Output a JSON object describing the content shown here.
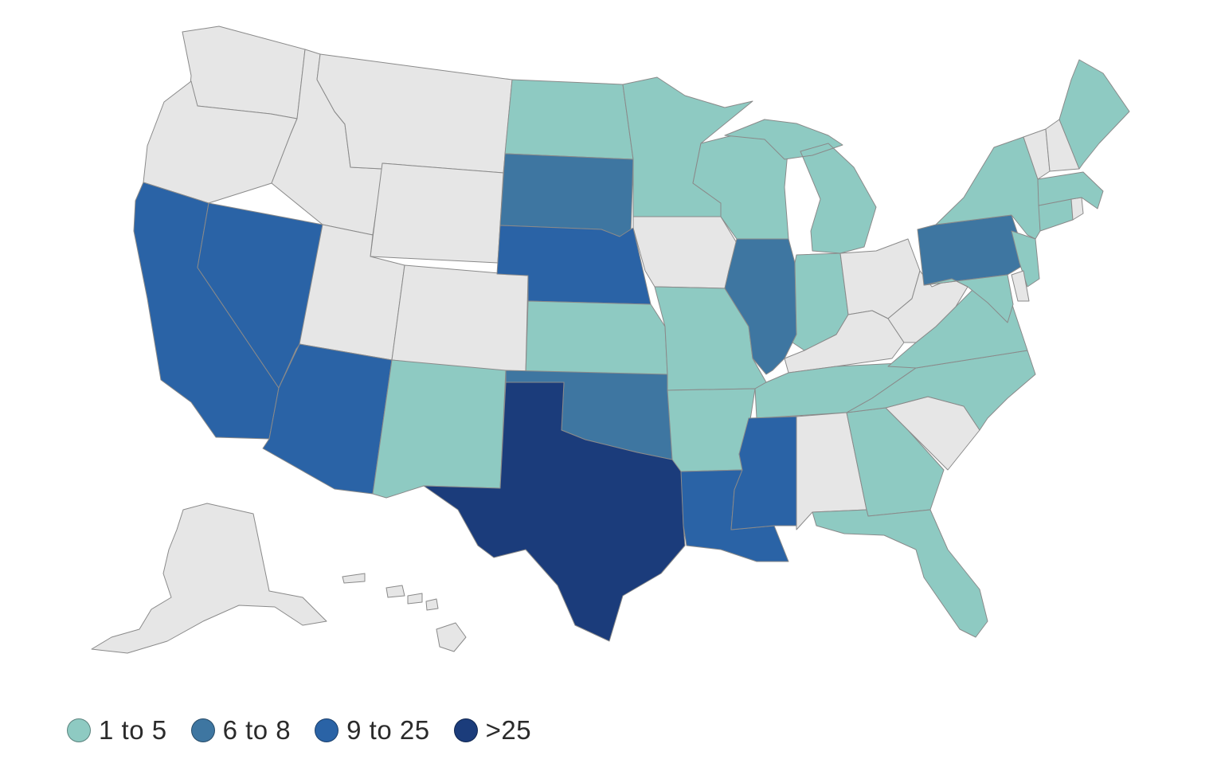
{
  "colors": {
    "no_data": "#e6e6e6",
    "bin_1_5": "#8ecac2",
    "bin_6_8": "#3e76a1",
    "bin_9_25": "#2a63a6",
    "bin_gt_25": "#1b3c7b"
  },
  "legend": [
    {
      "label": "1 to 5",
      "color_key": "bin_1_5"
    },
    {
      "label": "6 to 8",
      "color_key": "bin_6_8"
    },
    {
      "label": "9 to 25",
      "color_key": "bin_9_25"
    },
    {
      "label": ">25",
      "color_key": "bin_gt_25"
    }
  ],
  "states": [
    {
      "id": "WA",
      "bin": "no_data"
    },
    {
      "id": "OR",
      "bin": "no_data"
    },
    {
      "id": "CA",
      "bin": "bin_9_25"
    },
    {
      "id": "NV",
      "bin": "bin_9_25"
    },
    {
      "id": "ID",
      "bin": "no_data"
    },
    {
      "id": "MT",
      "bin": "no_data"
    },
    {
      "id": "WY",
      "bin": "no_data"
    },
    {
      "id": "UT",
      "bin": "no_data"
    },
    {
      "id": "AZ",
      "bin": "bin_9_25"
    },
    {
      "id": "CO",
      "bin": "no_data"
    },
    {
      "id": "NM",
      "bin": "bin_1_5"
    },
    {
      "id": "ND",
      "bin": "bin_1_5"
    },
    {
      "id": "SD",
      "bin": "bin_6_8"
    },
    {
      "id": "NE",
      "bin": "bin_9_25"
    },
    {
      "id": "KS",
      "bin": "bin_1_5"
    },
    {
      "id": "OK",
      "bin": "bin_6_8"
    },
    {
      "id": "TX",
      "bin": "bin_gt_25"
    },
    {
      "id": "MN",
      "bin": "bin_1_5"
    },
    {
      "id": "IA",
      "bin": "no_data"
    },
    {
      "id": "MO",
      "bin": "bin_1_5"
    },
    {
      "id": "AR",
      "bin": "bin_1_5"
    },
    {
      "id": "LA",
      "bin": "bin_9_25"
    },
    {
      "id": "WI",
      "bin": "bin_1_5"
    },
    {
      "id": "IL",
      "bin": "bin_6_8"
    },
    {
      "id": "MI",
      "bin": "bin_1_5"
    },
    {
      "id": "IN",
      "bin": "bin_1_5"
    },
    {
      "id": "OH",
      "bin": "no_data"
    },
    {
      "id": "KY",
      "bin": "no_data"
    },
    {
      "id": "TN",
      "bin": "bin_1_5"
    },
    {
      "id": "MS",
      "bin": "bin_9_25"
    },
    {
      "id": "AL",
      "bin": "no_data"
    },
    {
      "id": "GA",
      "bin": "bin_1_5"
    },
    {
      "id": "FL",
      "bin": "bin_1_5"
    },
    {
      "id": "SC",
      "bin": "no_data"
    },
    {
      "id": "NC",
      "bin": "bin_1_5"
    },
    {
      "id": "VA",
      "bin": "bin_1_5"
    },
    {
      "id": "WV",
      "bin": "no_data"
    },
    {
      "id": "PA",
      "bin": "bin_6_8"
    },
    {
      "id": "NY",
      "bin": "bin_1_5"
    },
    {
      "id": "NJ",
      "bin": "bin_1_5"
    },
    {
      "id": "DE",
      "bin": "no_data"
    },
    {
      "id": "MD",
      "bin": "bin_1_5"
    },
    {
      "id": "CT",
      "bin": "bin_1_5"
    },
    {
      "id": "RI",
      "bin": "no_data"
    },
    {
      "id": "MA",
      "bin": "bin_1_5"
    },
    {
      "id": "VT",
      "bin": "no_data"
    },
    {
      "id": "NH",
      "bin": "no_data"
    },
    {
      "id": "ME",
      "bin": "bin_1_5"
    },
    {
      "id": "AK",
      "bin": "no_data"
    },
    {
      "id": "HI",
      "bin": "no_data"
    }
  ]
}
